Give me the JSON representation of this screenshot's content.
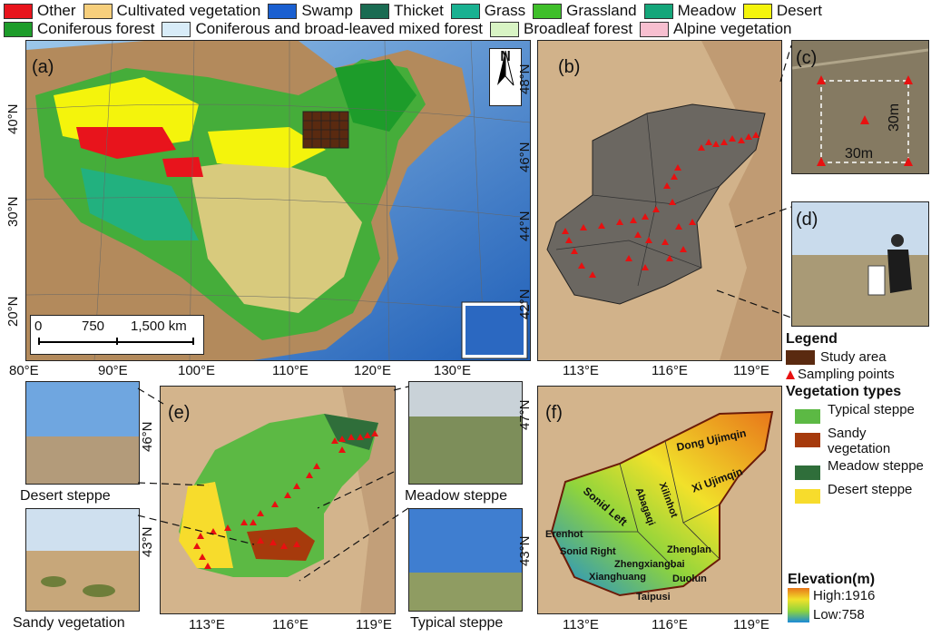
{
  "legend_top": {
    "row1": [
      {
        "label": "Other",
        "color": "#e8141c"
      },
      {
        "label": "Cultivated vegetation",
        "color": "#f7cf7c"
      },
      {
        "label": "Swamp",
        "color": "#1a5fd0"
      },
      {
        "label": "Thicket",
        "color": "#1a6b52"
      },
      {
        "label": "Grass",
        "color": "#19b191"
      },
      {
        "label": "Grassland",
        "color": "#3fbf2a"
      },
      {
        "label": "Meadow",
        "color": "#14a67a"
      },
      {
        "label": "Desert",
        "color": "#f4f40c"
      }
    ],
    "row2": [
      {
        "label": "Coniferous forest",
        "color": "#1d9c2a"
      },
      {
        "label": "Coniferous and broad-leaved mixed forest",
        "color": "#d8ecf8"
      },
      {
        "label": "Broadleaf forest",
        "color": "#d8f4c4"
      },
      {
        "label": "Alpine vegetation",
        "color": "#f7bfd0"
      }
    ]
  },
  "panel_a": {
    "label": "(a)",
    "y_ticks": [
      "40°N",
      "30°N",
      "20°N"
    ],
    "x_ticks": [
      "80°E",
      "90°E",
      "100°E",
      "110°E",
      "120°E",
      "130°E"
    ],
    "north": "N",
    "scale": {
      "t0": "0",
      "t1": "750",
      "t2": "1,500 km"
    }
  },
  "panel_b": {
    "label": "(b)",
    "y_ticks": [
      "48°N",
      "46°N",
      "44°N",
      "42°N"
    ],
    "x_ticks": [
      "113°E",
      "116°E",
      "119°E"
    ]
  },
  "panel_c": {
    "label": "(c)",
    "w": "30m",
    "h": "30m"
  },
  "panel_d": {
    "label": "(d)"
  },
  "panel_e": {
    "label": "(e)",
    "y_ticks": [
      "46°N",
      "43°N"
    ],
    "x_ticks": [
      "113°E",
      "116°E",
      "119°E"
    ]
  },
  "panel_f": {
    "label": "(f)",
    "y_ticks": [
      "47°N",
      "43°N"
    ],
    "x_ticks": [
      "113°E",
      "116°E",
      "119°E"
    ],
    "regions": [
      "Dong Ujimqin",
      "Xi Ujimqin",
      "Xilinhot",
      "Abagaqi",
      "Sonid Left",
      "Erenhot",
      "Sonid Right",
      "Zhenglan",
      "Zhengxiangbai",
      "Xianghuang",
      "Duolun",
      "Taipusi"
    ]
  },
  "photos": {
    "desert": "Desert steppe",
    "sandy": "Sandy vegetation",
    "meadow": "Meadow steppe",
    "typical": "Typical steppe"
  },
  "legend_right": {
    "title": "Legend",
    "study_area": "Study area",
    "sampling": "Sampling points",
    "veg_title": "Vegetation types",
    "veg": [
      {
        "label": "Typical steppe",
        "color": "#5cb944"
      },
      {
        "label": "Sandy vegetation",
        "color": "#a63a0c"
      },
      {
        "label": "Meadow steppe",
        "color": "#2f6e3a"
      },
      {
        "label": "Desert steppe",
        "color": "#f7dc2c"
      }
    ],
    "elev_title": "Elevation(m)",
    "high": "High:1916",
    "low": "Low:758"
  }
}
